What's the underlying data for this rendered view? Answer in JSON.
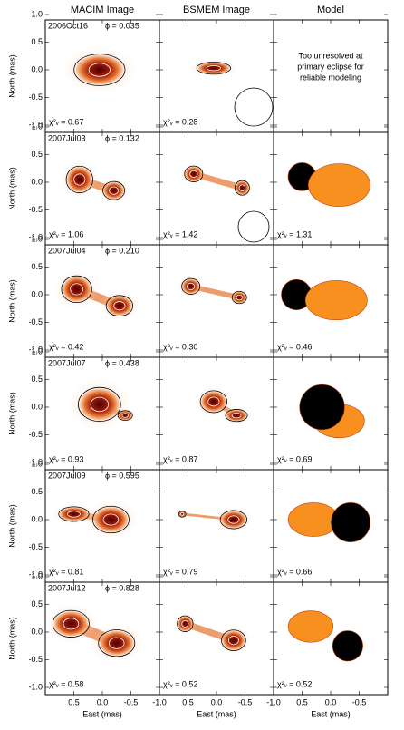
{
  "column_titles": [
    "MACIM Image",
    "BSMEM Image",
    "Model"
  ],
  "y_axis_label": "North (mas)",
  "x_axis_label": "East (mas)",
  "yticks": [
    "1.0",
    "0.5",
    "0.0",
    "-0.5",
    "-1.0"
  ],
  "xticks": [
    "0.5",
    "0.0",
    "-0.5",
    "-1.0"
  ],
  "model_note": [
    "Too unresolved at",
    "primary eclipse for",
    "reliable modeling"
  ],
  "rows": [
    {
      "date": "2006Oct16",
      "phase": "ϕ = 0.035",
      "chi2": [
        "χ²ᵥ = 0.67",
        "χ²ᵥ = 0.28",
        null
      ]
    },
    {
      "date": "2007Jul03",
      "phase": "ϕ = 0.132",
      "chi2": [
        "χ²ᵥ = 1.06",
        "χ²ᵥ = 1.42",
        "χ²ᵥ = 1.31"
      ]
    },
    {
      "date": "2007Jul04",
      "phase": "ϕ = 0.210",
      "chi2": [
        "χ²ᵥ = 0.42",
        "χ²ᵥ = 0.30",
        "χ²ᵥ = 0.46"
      ]
    },
    {
      "date": "2007Jul07",
      "phase": "ϕ = 0.438",
      "chi2": [
        "χ²ᵥ = 0.93",
        "χ²ᵥ = 0.87",
        "χ²ᵥ = 0.69"
      ]
    },
    {
      "date": "2007Jul09",
      "phase": "ϕ = 0.595",
      "chi2": [
        "χ²ᵥ = 0.81",
        "χ²ᵥ = 0.79",
        "χ²ᵥ = 0.66"
      ]
    },
    {
      "date": "2007Jul12",
      "phase": "ϕ = 0.828",
      "chi2": [
        "χ²ᵥ = 0.58",
        "χ²ᵥ = 0.52",
        "χ²ᵥ = 0.52"
      ]
    }
  ]
}
